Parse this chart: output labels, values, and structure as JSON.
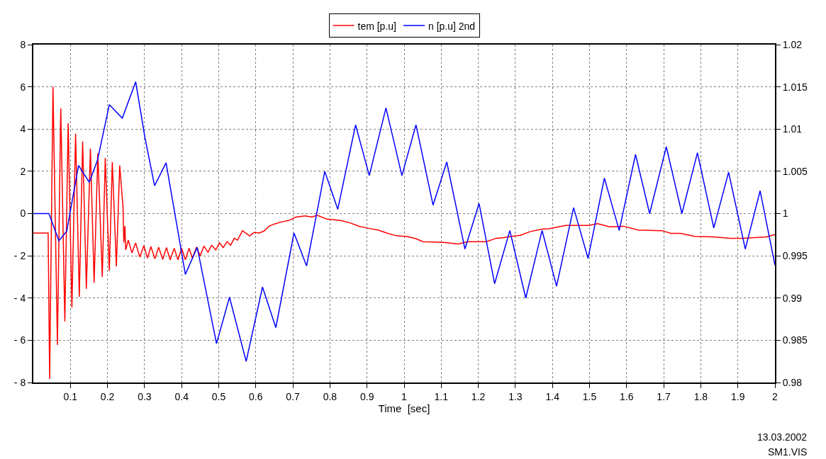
{
  "chart_data": {
    "type": "line",
    "xlabel": "Time  [sec]",
    "xlim": [
      0,
      2
    ],
    "xticks": [
      0.1,
      0.2,
      0.3,
      0.4,
      0.5,
      0.6,
      0.7,
      0.8,
      0.9,
      1,
      1.1,
      1.2,
      1.3,
      1.4,
      1.5,
      1.6,
      1.7,
      1.8,
      1.9,
      2
    ],
    "ylim": [
      -8,
      8
    ],
    "yticks": [
      {
        "value": -8,
        "label": "- 8"
      },
      {
        "value": -6,
        "label": "- 6"
      },
      {
        "value": -4,
        "label": "- 4"
      },
      {
        "value": -2,
        "label": "- 2"
      },
      0,
      2,
      4,
      6,
      8
    ],
    "y2lim": [
      0.98,
      1.02
    ],
    "y2ticks": [
      0.98,
      0.985,
      0.99,
      0.995,
      1,
      1.005,
      1.01,
      1.015,
      1.02
    ],
    "grid": true,
    "legend": "top",
    "line_style": "solid",
    "marker": "none",
    "annotations": [
      "13.03.2002",
      "SM1.VIS"
    ],
    "series": [
      {
        "name": "tem [p.u]",
        "color": "#ff0000",
        "x": [
          0,
          0.04,
          0.044,
          0.053,
          0.065,
          0.074,
          0.085,
          0.094,
          0.104,
          0.114,
          0.124,
          0.133,
          0.143,
          0.154,
          0.164,
          0.174,
          0.186,
          0.194,
          0.205,
          0.213,
          0.224,
          0.233,
          0.242,
          0.244,
          0.247,
          0.249,
          0.256,
          0.266,
          0.276,
          0.287,
          0.298,
          0.308,
          0.317,
          0.328,
          0.338,
          0.349,
          0.359,
          0.369,
          0.38,
          0.39,
          0.4,
          0.41,
          0.42,
          0.429,
          0.44,
          0.45,
          0.46,
          0.471,
          0.481,
          0.492,
          0.502,
          0.512,
          0.523,
          0.532,
          0.542,
          0.551,
          0.564,
          0.583,
          0.596,
          0.609,
          0.622,
          0.635,
          0.649,
          0.67,
          0.689,
          0.708,
          0.733,
          0.752,
          0.765,
          0.791,
          0.829,
          0.854,
          0.88,
          0.905,
          0.93,
          0.956,
          0.981,
          1.006,
          1.032,
          1.051,
          1.108,
          1.146,
          1.171,
          1.222,
          1.248,
          1.268,
          1.288,
          1.313,
          1.339,
          1.371,
          1.39,
          1.435,
          1.46,
          1.498,
          1.522,
          1.554,
          1.592,
          1.631,
          1.695,
          1.72,
          1.746,
          1.784,
          1.835,
          1.88,
          1.912,
          1.976,
          2.0
        ],
        "values": [
          -0.92,
          -0.92,
          -7.83,
          6.0,
          -6.22,
          4.98,
          -5.11,
          4.28,
          -4.44,
          3.78,
          -3.94,
          3.41,
          -3.56,
          3.08,
          -3.28,
          2.86,
          -3.0,
          2.63,
          -2.72,
          2.44,
          -2.5,
          2.28,
          0.28,
          -1.37,
          -0.59,
          -1.72,
          -1.26,
          -1.86,
          -1.39,
          -2.06,
          -1.52,
          -2.11,
          -1.56,
          -2.14,
          -1.59,
          -2.17,
          -1.61,
          -2.19,
          -1.64,
          -2.19,
          -1.64,
          -2.19,
          -1.64,
          -2.11,
          -1.59,
          -2.0,
          -1.54,
          -1.83,
          -1.5,
          -1.72,
          -1.39,
          -1.61,
          -1.33,
          -1.5,
          -1.17,
          -1.26,
          -0.81,
          -1.06,
          -0.89,
          -0.92,
          -0.83,
          -0.61,
          -0.5,
          -0.39,
          -0.33,
          -0.17,
          -0.11,
          -0.17,
          -0.08,
          -0.26,
          -0.33,
          -0.44,
          -0.61,
          -0.7,
          -0.78,
          -0.94,
          -1.06,
          -1.08,
          -1.19,
          -1.33,
          -1.37,
          -1.44,
          -1.33,
          -1.33,
          -1.17,
          -1.14,
          -1.08,
          -1.03,
          -0.86,
          -0.74,
          -0.72,
          -0.56,
          -0.56,
          -0.56,
          -0.48,
          -0.63,
          -0.6,
          -0.78,
          -0.81,
          -0.94,
          -0.94,
          -1.08,
          -1.11,
          -1.17,
          -1.17,
          -1.11,
          -1.0
        ]
      },
      {
        "name": "n [p.u] 2nd",
        "color": "#0000ff",
        "axis": "y2",
        "x": [
          0,
          0.042,
          0.069,
          0.09,
          0.122,
          0.151,
          0.173,
          0.205,
          0.24,
          0.276,
          0.301,
          0.327,
          0.358,
          0.41,
          0.442,
          0.494,
          0.529,
          0.574,
          0.618,
          0.654,
          0.703,
          0.737,
          0.786,
          0.821,
          0.869,
          0.906,
          0.951,
          0.994,
          1.032,
          1.078,
          1.115,
          1.164,
          1.202,
          1.244,
          1.285,
          1.328,
          1.372,
          1.411,
          1.457,
          1.496,
          1.54,
          1.58,
          1.624,
          1.662,
          1.707,
          1.749,
          1.791,
          1.835,
          1.875,
          1.92,
          1.96,
          2.0
        ],
        "values": [
          1.0,
          1.0,
          0.9968,
          0.9979,
          1.0057,
          1.0037,
          1.0063,
          1.0129,
          1.0113,
          1.0156,
          1.009,
          1.0033,
          1.006,
          0.9928,
          0.996,
          0.9846,
          0.9901,
          0.9825,
          0.9913,
          0.9865,
          0.9977,
          0.9938,
          1.005,
          1.0005,
          1.0105,
          1.0045,
          1.0125,
          1.0045,
          1.0105,
          1.001,
          1.0061,
          0.9958,
          1.0012,
          0.9917,
          0.998,
          0.99,
          0.998,
          0.9914,
          1.0007,
          0.9947,
          1.0042,
          0.998,
          1.007,
          1.0,
          1.0079,
          1.0,
          1.0072,
          0.9983,
          1.0049,
          0.9958,
          1.0027,
          0.9939
        ]
      }
    ]
  }
}
